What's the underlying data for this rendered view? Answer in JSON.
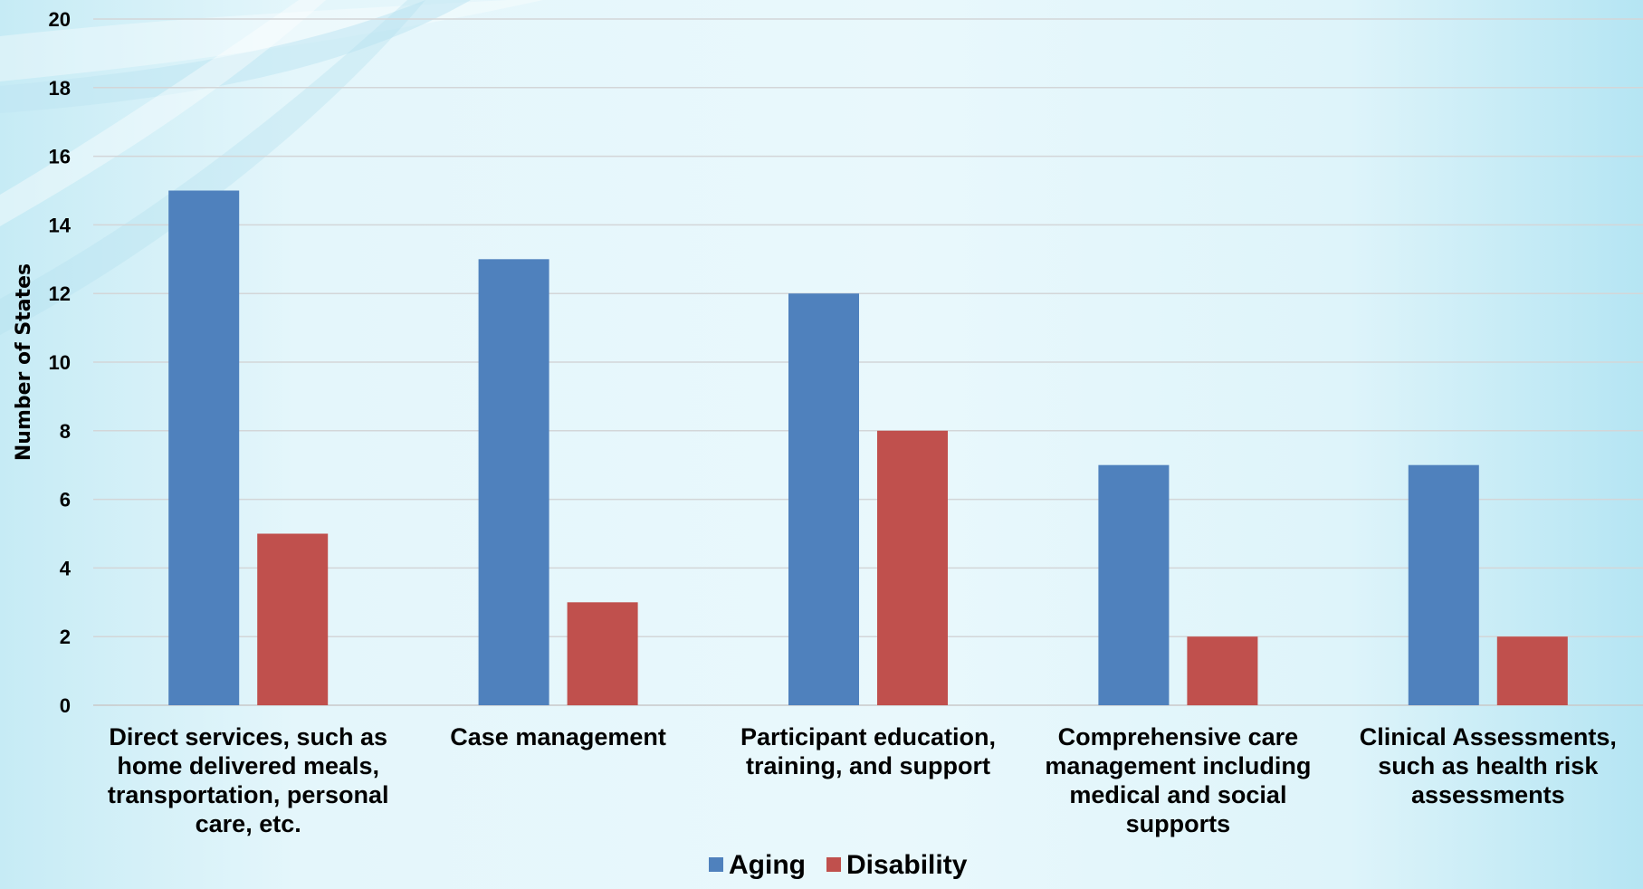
{
  "chart_data": {
    "type": "bar",
    "title": "",
    "xlabel": "",
    "ylabel": "Number of States",
    "ylim": [
      0,
      20
    ],
    "yticks": [
      0,
      2,
      4,
      6,
      8,
      10,
      12,
      14,
      16,
      18,
      20
    ],
    "grid": true,
    "legend_position": "bottom",
    "categories": [
      [
        "Direct services, such as",
        "home delivered meals,",
        "transportation, personal",
        "care, etc."
      ],
      [
        "Case management"
      ],
      [
        "Participant education,",
        "training, and support"
      ],
      [
        "Comprehensive care",
        "management including",
        "medical and social",
        "supports"
      ],
      [
        "Clinical Assessments,",
        "such as health risk",
        "assessments"
      ]
    ],
    "series": [
      {
        "name": "Aging",
        "color": "#4f81bd",
        "values": [
          15,
          13,
          12,
          7,
          7
        ]
      },
      {
        "name": "Disability",
        "color": "#c0504d",
        "values": [
          5,
          3,
          8,
          2,
          2
        ]
      }
    ]
  }
}
